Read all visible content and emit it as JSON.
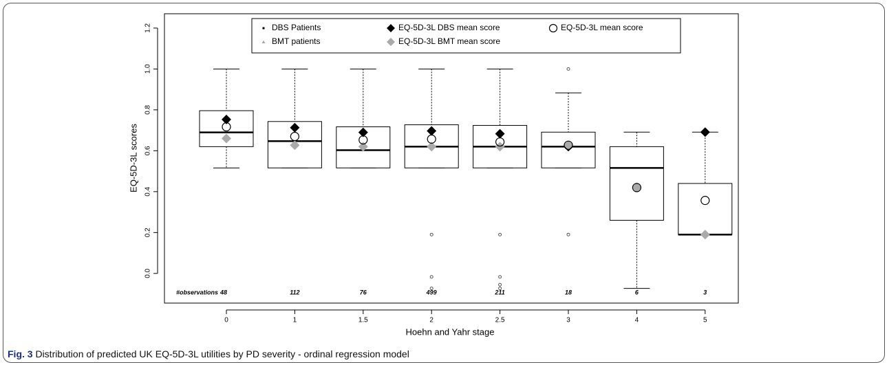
{
  "chart_data": {
    "type": "box",
    "xlabel": "Hoehn and Yahr stage",
    "ylabel": "EQ-5D-3L scores",
    "categories": [
      "0",
      "1",
      "1.5",
      "2",
      "2.5",
      "3",
      "4",
      "5"
    ],
    "ylim": [
      -0.145,
      1.27
    ],
    "yticks": [
      {
        "value": 0,
        "label": "0.0"
      },
      0.2,
      0.4,
      0.6,
      0.8,
      {
        "value": 1,
        "label": "1.0"
      },
      1.2
    ],
    "box_color": "#000000",
    "boxes": [
      {
        "whislo": 0.516,
        "q1": 0.62,
        "med": 0.69,
        "q3": 0.796,
        "whishi": 1.0,
        "fliers": []
      },
      {
        "whislo": 0.516,
        "q1": 0.516,
        "med": 0.647,
        "q3": 0.743,
        "whishi": 1.0,
        "fliers": []
      },
      {
        "whislo": 0.516,
        "q1": 0.516,
        "med": 0.603,
        "q3": 0.717,
        "whishi": 1.0,
        "fliers": []
      },
      {
        "whislo": 0.516,
        "q1": 0.516,
        "med": 0.62,
        "q3": 0.727,
        "whishi": 1.0,
        "fliers": [
          0.19,
          -0.017,
          -0.073
        ]
      },
      {
        "whislo": 0.516,
        "q1": 0.516,
        "med": 0.62,
        "q3": 0.724,
        "whishi": 1.0,
        "fliers": [
          0.19,
          -0.017,
          -0.055,
          -0.073
        ]
      },
      {
        "whislo": 0.516,
        "q1": 0.516,
        "med": 0.62,
        "q3": 0.691,
        "whishi": 0.883,
        "fliers": [
          1.0,
          0.19
        ]
      },
      {
        "whislo": -0.073,
        "q1": 0.26,
        "med": 0.516,
        "q3": 0.62,
        "whishi": 0.691,
        "fliers": []
      },
      {
        "whislo": 0.19,
        "q1": 0.19,
        "med": 0.19,
        "q3": 0.44,
        "whishi": 0.691,
        "fliers": []
      }
    ],
    "point_legend": [
      {
        "name": "DBS Patients",
        "color": "#000000",
        "marker": "square"
      },
      {
        "name": "BMT patients",
        "color": "#aaaaaa",
        "marker": "triangle"
      }
    ],
    "series": [
      {
        "name": "EQ-5D-3L DBS mean score",
        "color": "#000000",
        "marker": "diamond",
        "values": [
          0.753,
          0.713,
          0.69,
          0.697,
          0.683,
          0.62,
          null,
          0.691
        ]
      },
      {
        "name": "EQ-5D-3L BMT mean score",
        "color": "#aaaaaa",
        "marker": "diamond",
        "values": [
          0.66,
          0.627,
          0.62,
          0.62,
          0.62,
          0.627,
          0.42,
          0.19
        ]
      },
      {
        "name": "EQ-5D-3L mean score",
        "color": "#000000",
        "marker": "open-circle",
        "values": [
          0.717,
          0.67,
          0.653,
          0.657,
          0.643,
          0.627,
          0.42,
          0.357
        ]
      }
    ],
    "observations_label": "#observations",
    "observations": [
      48,
      112,
      76,
      499,
      211,
      18,
      6,
      3
    ]
  },
  "caption": {
    "label": "Fig. 3",
    "text": "Distribution of predicted UK EQ-5D-3L utilities by PD severity - ordinal regression model"
  }
}
